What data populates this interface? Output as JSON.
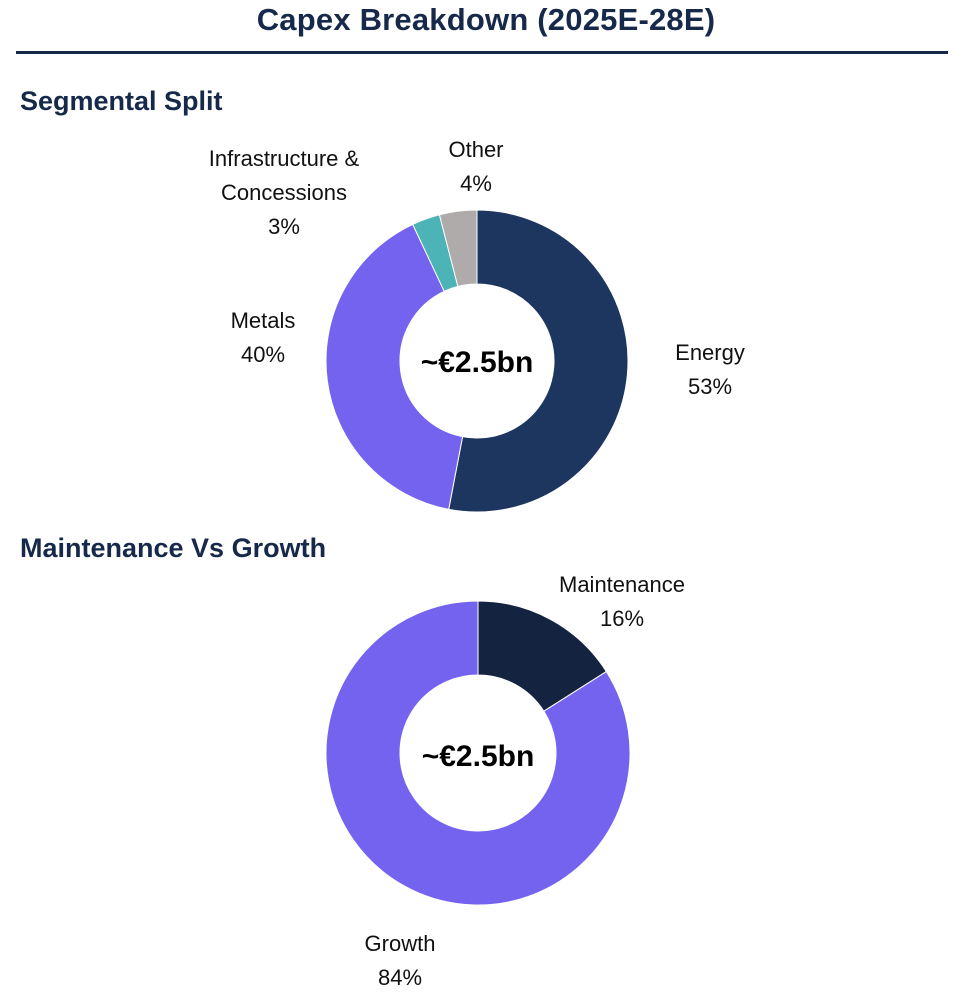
{
  "title": "Capex Breakdown (2025E-28E)",
  "sections": [
    {
      "title": "Segmental Split"
    },
    {
      "title": "Maintenance Vs Growth"
    }
  ],
  "chart_data": [
    {
      "type": "pie",
      "title": "Segmental Split",
      "center_label": "~€2.5bn",
      "slices": [
        {
          "name": "Energy",
          "value": 53,
          "label": "53%",
          "color": "#1c365f"
        },
        {
          "name": "Metals",
          "value": 40,
          "label": "40%",
          "color": "#7463ef"
        },
        {
          "name": "Infrastructure & Concessions",
          "value": 3,
          "label": "3%",
          "color": "#4cb3b7"
        },
        {
          "name": "Other",
          "value": 4,
          "label": "4%",
          "color": "#aeabaa"
        }
      ]
    },
    {
      "type": "pie",
      "title": "Maintenance Vs Growth",
      "center_label": "~€2.5bn",
      "slices": [
        {
          "name": "Maintenance",
          "value": 16,
          "label": "16%",
          "color": "#142340"
        },
        {
          "name": "Growth",
          "value": 84,
          "label": "84%",
          "color": "#7463ef"
        }
      ]
    }
  ]
}
